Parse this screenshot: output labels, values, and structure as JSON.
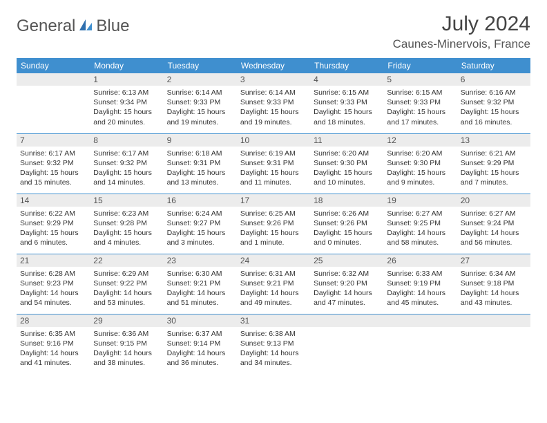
{
  "logo": {
    "word1": "General",
    "word2": "Blue"
  },
  "title": "July 2024",
  "location": "Caunes-Minervois, France",
  "colors": {
    "header_bg": "#3f8fcf",
    "header_text": "#ffffff",
    "daynum_bg": "#ececec",
    "rule": "#3f8fcf",
    "logo_gray": "#555555",
    "logo_blue": "#3a7bbf"
  },
  "weekdays": [
    "Sunday",
    "Monday",
    "Tuesday",
    "Wednesday",
    "Thursday",
    "Friday",
    "Saturday"
  ],
  "layout": {
    "first_weekday_index": 1,
    "days_in_month": 31
  },
  "days": {
    "1": {
      "sunrise": "Sunrise: 6:13 AM",
      "sunset": "Sunset: 9:34 PM",
      "daylight": "Daylight: 15 hours and 20 minutes."
    },
    "2": {
      "sunrise": "Sunrise: 6:14 AM",
      "sunset": "Sunset: 9:33 PM",
      "daylight": "Daylight: 15 hours and 19 minutes."
    },
    "3": {
      "sunrise": "Sunrise: 6:14 AM",
      "sunset": "Sunset: 9:33 PM",
      "daylight": "Daylight: 15 hours and 19 minutes."
    },
    "4": {
      "sunrise": "Sunrise: 6:15 AM",
      "sunset": "Sunset: 9:33 PM",
      "daylight": "Daylight: 15 hours and 18 minutes."
    },
    "5": {
      "sunrise": "Sunrise: 6:15 AM",
      "sunset": "Sunset: 9:33 PM",
      "daylight": "Daylight: 15 hours and 17 minutes."
    },
    "6": {
      "sunrise": "Sunrise: 6:16 AM",
      "sunset": "Sunset: 9:32 PM",
      "daylight": "Daylight: 15 hours and 16 minutes."
    },
    "7": {
      "sunrise": "Sunrise: 6:17 AM",
      "sunset": "Sunset: 9:32 PM",
      "daylight": "Daylight: 15 hours and 15 minutes."
    },
    "8": {
      "sunrise": "Sunrise: 6:17 AM",
      "sunset": "Sunset: 9:32 PM",
      "daylight": "Daylight: 15 hours and 14 minutes."
    },
    "9": {
      "sunrise": "Sunrise: 6:18 AM",
      "sunset": "Sunset: 9:31 PM",
      "daylight": "Daylight: 15 hours and 13 minutes."
    },
    "10": {
      "sunrise": "Sunrise: 6:19 AM",
      "sunset": "Sunset: 9:31 PM",
      "daylight": "Daylight: 15 hours and 11 minutes."
    },
    "11": {
      "sunrise": "Sunrise: 6:20 AM",
      "sunset": "Sunset: 9:30 PM",
      "daylight": "Daylight: 15 hours and 10 minutes."
    },
    "12": {
      "sunrise": "Sunrise: 6:20 AM",
      "sunset": "Sunset: 9:30 PM",
      "daylight": "Daylight: 15 hours and 9 minutes."
    },
    "13": {
      "sunrise": "Sunrise: 6:21 AM",
      "sunset": "Sunset: 9:29 PM",
      "daylight": "Daylight: 15 hours and 7 minutes."
    },
    "14": {
      "sunrise": "Sunrise: 6:22 AM",
      "sunset": "Sunset: 9:29 PM",
      "daylight": "Daylight: 15 hours and 6 minutes."
    },
    "15": {
      "sunrise": "Sunrise: 6:23 AM",
      "sunset": "Sunset: 9:28 PM",
      "daylight": "Daylight: 15 hours and 4 minutes."
    },
    "16": {
      "sunrise": "Sunrise: 6:24 AM",
      "sunset": "Sunset: 9:27 PM",
      "daylight": "Daylight: 15 hours and 3 minutes."
    },
    "17": {
      "sunrise": "Sunrise: 6:25 AM",
      "sunset": "Sunset: 9:26 PM",
      "daylight": "Daylight: 15 hours and 1 minute."
    },
    "18": {
      "sunrise": "Sunrise: 6:26 AM",
      "sunset": "Sunset: 9:26 PM",
      "daylight": "Daylight: 15 hours and 0 minutes."
    },
    "19": {
      "sunrise": "Sunrise: 6:27 AM",
      "sunset": "Sunset: 9:25 PM",
      "daylight": "Daylight: 14 hours and 58 minutes."
    },
    "20": {
      "sunrise": "Sunrise: 6:27 AM",
      "sunset": "Sunset: 9:24 PM",
      "daylight": "Daylight: 14 hours and 56 minutes."
    },
    "21": {
      "sunrise": "Sunrise: 6:28 AM",
      "sunset": "Sunset: 9:23 PM",
      "daylight": "Daylight: 14 hours and 54 minutes."
    },
    "22": {
      "sunrise": "Sunrise: 6:29 AM",
      "sunset": "Sunset: 9:22 PM",
      "daylight": "Daylight: 14 hours and 53 minutes."
    },
    "23": {
      "sunrise": "Sunrise: 6:30 AM",
      "sunset": "Sunset: 9:21 PM",
      "daylight": "Daylight: 14 hours and 51 minutes."
    },
    "24": {
      "sunrise": "Sunrise: 6:31 AM",
      "sunset": "Sunset: 9:21 PM",
      "daylight": "Daylight: 14 hours and 49 minutes."
    },
    "25": {
      "sunrise": "Sunrise: 6:32 AM",
      "sunset": "Sunset: 9:20 PM",
      "daylight": "Daylight: 14 hours and 47 minutes."
    },
    "26": {
      "sunrise": "Sunrise: 6:33 AM",
      "sunset": "Sunset: 9:19 PM",
      "daylight": "Daylight: 14 hours and 45 minutes."
    },
    "27": {
      "sunrise": "Sunrise: 6:34 AM",
      "sunset": "Sunset: 9:18 PM",
      "daylight": "Daylight: 14 hours and 43 minutes."
    },
    "28": {
      "sunrise": "Sunrise: 6:35 AM",
      "sunset": "Sunset: 9:16 PM",
      "daylight": "Daylight: 14 hours and 41 minutes."
    },
    "29": {
      "sunrise": "Sunrise: 6:36 AM",
      "sunset": "Sunset: 9:15 PM",
      "daylight": "Daylight: 14 hours and 38 minutes."
    },
    "30": {
      "sunrise": "Sunrise: 6:37 AM",
      "sunset": "Sunset: 9:14 PM",
      "daylight": "Daylight: 14 hours and 36 minutes."
    },
    "31": {
      "sunrise": "Sunrise: 6:38 AM",
      "sunset": "Sunset: 9:13 PM",
      "daylight": "Daylight: 14 hours and 34 minutes."
    }
  }
}
